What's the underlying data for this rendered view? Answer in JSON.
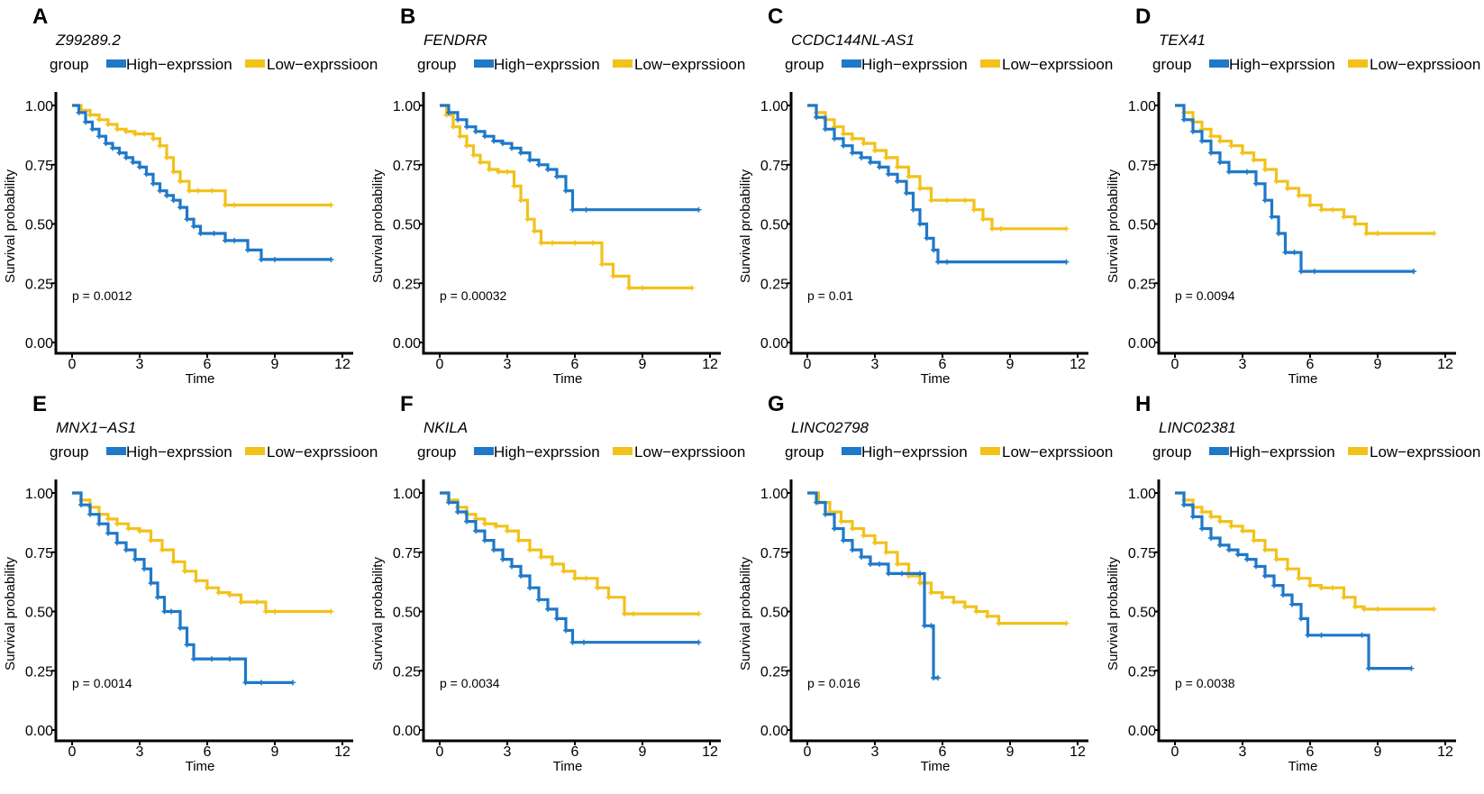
{
  "figure": {
    "legend_title": "group",
    "colors": {
      "high": "#1f78c8",
      "low": "#f2c21b"
    }
  },
  "chart_data": [
    {
      "type": "line",
      "panel": "A",
      "title": "Z99289.2",
      "xlabel": "Time",
      "ylabel": "Survival probability",
      "xlim": [
        0,
        12
      ],
      "ylim": [
        0,
        1
      ],
      "xticks": [
        "0",
        "3",
        "6",
        "9",
        "12"
      ],
      "yticks": [
        "0.00",
        "0.25",
        "0.50",
        "0.75",
        "1.00"
      ],
      "pvalue": "p = 0.0012",
      "legend_title": "group",
      "series": [
        {
          "name": "High−exprssion",
          "x": [
            0,
            0.3,
            0.6,
            0.9,
            1.2,
            1.5,
            1.8,
            2.1,
            2.4,
            2.7,
            3,
            3.3,
            3.6,
            3.9,
            4.2,
            4.5,
            4.8,
            5.1,
            5.4,
            5.7,
            6.3,
            6.8,
            7.2,
            7.8,
            8.4,
            9.0,
            11.5
          ],
          "y": [
            1,
            0.97,
            0.93,
            0.9,
            0.87,
            0.84,
            0.82,
            0.8,
            0.78,
            0.76,
            0.74,
            0.71,
            0.67,
            0.64,
            0.62,
            0.6,
            0.57,
            0.52,
            0.49,
            0.46,
            0.46,
            0.43,
            0.43,
            0.39,
            0.35,
            0.35,
            0.35
          ]
        },
        {
          "name": "Low−exprssioon",
          "x": [
            0,
            0.4,
            0.8,
            1.2,
            1.6,
            2.0,
            2.4,
            2.8,
            3.2,
            3.6,
            3.9,
            4.2,
            4.5,
            4.8,
            5.2,
            5.6,
            6.2,
            6.8,
            7.2,
            11.5
          ],
          "y": [
            1,
            0.98,
            0.96,
            0.94,
            0.92,
            0.9,
            0.89,
            0.88,
            0.88,
            0.86,
            0.83,
            0.78,
            0.72,
            0.68,
            0.64,
            0.64,
            0.64,
            0.58,
            0.58,
            0.58
          ]
        }
      ]
    },
    {
      "type": "line",
      "panel": "B",
      "title": "FENDRR",
      "xlabel": "Time",
      "ylabel": "Survival probability",
      "xlim": [
        0,
        12
      ],
      "ylim": [
        0,
        1
      ],
      "xticks": [
        "0",
        "3",
        "6",
        "9",
        "12"
      ],
      "yticks": [
        "0.00",
        "0.25",
        "0.50",
        "0.75",
        "1.00"
      ],
      "pvalue": "p = 0.00032",
      "legend_title": "group",
      "series": [
        {
          "name": "High−exprssion",
          "x": [
            0,
            0.4,
            0.8,
            1.2,
            1.6,
            2.0,
            2.4,
            2.8,
            3.2,
            3.6,
            4.0,
            4.4,
            4.8,
            5.2,
            5.6,
            5.9,
            6.5,
            11.5
          ],
          "y": [
            1,
            0.97,
            0.94,
            0.91,
            0.89,
            0.87,
            0.85,
            0.84,
            0.82,
            0.8,
            0.77,
            0.75,
            0.73,
            0.7,
            0.64,
            0.56,
            0.56,
            0.56
          ]
        },
        {
          "name": "Low−exprssioon",
          "x": [
            0,
            0.3,
            0.6,
            0.9,
            1.2,
            1.5,
            1.8,
            2.2,
            2.6,
            3.0,
            3.3,
            3.6,
            3.9,
            4.2,
            4.5,
            5.0,
            6.0,
            6.8,
            7.2,
            7.7,
            8.4,
            9.0,
            11.2
          ],
          "y": [
            1,
            0.96,
            0.91,
            0.87,
            0.83,
            0.79,
            0.76,
            0.73,
            0.72,
            0.72,
            0.66,
            0.6,
            0.52,
            0.47,
            0.42,
            0.42,
            0.42,
            0.42,
            0.33,
            0.28,
            0.23,
            0.23,
            0.23
          ]
        }
      ]
    },
    {
      "type": "line",
      "panel": "C",
      "title": "CCDC144NL-AS1",
      "xlabel": "Time",
      "ylabel": "Survival probability",
      "xlim": [
        0,
        12
      ],
      "ylim": [
        0,
        1
      ],
      "xticks": [
        "0",
        "3",
        "6",
        "9",
        "12"
      ],
      "yticks": [
        "0.00",
        "0.25",
        "0.50",
        "0.75",
        "1.00"
      ],
      "pvalue": "p = 0.01",
      "legend_title": "group",
      "series": [
        {
          "name": "High−exprssion",
          "x": [
            0,
            0.4,
            0.8,
            1.2,
            1.6,
            2.0,
            2.4,
            2.8,
            3.2,
            3.6,
            4.0,
            4.4,
            4.7,
            5.0,
            5.3,
            5.6,
            5.8,
            6.2,
            11.5
          ],
          "y": [
            1,
            0.95,
            0.9,
            0.86,
            0.83,
            0.8,
            0.78,
            0.76,
            0.74,
            0.71,
            0.68,
            0.63,
            0.56,
            0.5,
            0.44,
            0.39,
            0.34,
            0.34,
            0.34
          ]
        },
        {
          "name": "Low−exprssioon",
          "x": [
            0,
            0.4,
            0.8,
            1.2,
            1.6,
            2.0,
            2.5,
            3.0,
            3.5,
            4.0,
            4.5,
            5.0,
            5.5,
            6.2,
            7.0,
            7.4,
            7.8,
            8.2,
            8.6,
            11.5
          ],
          "y": [
            1,
            0.97,
            0.94,
            0.91,
            0.88,
            0.86,
            0.84,
            0.81,
            0.78,
            0.74,
            0.7,
            0.65,
            0.6,
            0.6,
            0.6,
            0.56,
            0.52,
            0.48,
            0.48,
            0.48
          ]
        }
      ]
    },
    {
      "type": "line",
      "panel": "D",
      "title": "TEX41",
      "xlabel": "Time",
      "ylabel": "Survival probability",
      "xlim": [
        0,
        12
      ],
      "ylim": [
        0,
        1
      ],
      "xticks": [
        "0",
        "3",
        "6",
        "9",
        "12"
      ],
      "yticks": [
        "0.00",
        "0.25",
        "0.50",
        "0.75",
        "1.00"
      ],
      "pvalue": "p = 0.0094",
      "legend_title": "group",
      "series": [
        {
          "name": "High−exprssion",
          "x": [
            0,
            0.4,
            0.8,
            1.2,
            1.6,
            2.0,
            2.4,
            3.2,
            3.6,
            4.0,
            4.3,
            4.6,
            4.9,
            5.3,
            5.6,
            6.2,
            10.6
          ],
          "y": [
            1,
            0.94,
            0.89,
            0.85,
            0.8,
            0.76,
            0.72,
            0.72,
            0.67,
            0.6,
            0.53,
            0.46,
            0.38,
            0.38,
            0.3,
            0.3,
            0.3
          ]
        },
        {
          "name": "Low−exprssioon",
          "x": [
            0,
            0.4,
            0.8,
            1.2,
            1.6,
            2.0,
            2.5,
            3.0,
            3.5,
            4.0,
            4.5,
            5.0,
            5.5,
            6.0,
            6.5,
            7.0,
            7.5,
            8.0,
            8.5,
            9.0,
            11.5
          ],
          "y": [
            1,
            0.97,
            0.93,
            0.9,
            0.87,
            0.85,
            0.83,
            0.8,
            0.77,
            0.73,
            0.68,
            0.65,
            0.62,
            0.58,
            0.56,
            0.56,
            0.53,
            0.5,
            0.46,
            0.46,
            0.46
          ]
        }
      ]
    },
    {
      "type": "line",
      "panel": "E",
      "title": "MNX1−AS1",
      "xlabel": "Time",
      "ylabel": "Survival probability",
      "xlim": [
        0,
        12
      ],
      "ylim": [
        0,
        1
      ],
      "xticks": [
        "0",
        "3",
        "6",
        "9",
        "12"
      ],
      "yticks": [
        "0.00",
        "0.25",
        "0.50",
        "0.75",
        "1.00"
      ],
      "pvalue": "p = 0.0014",
      "legend_title": "group",
      "series": [
        {
          "name": "High−exprssion",
          "x": [
            0,
            0.4,
            0.8,
            1.2,
            1.6,
            2.0,
            2.4,
            2.8,
            3.2,
            3.5,
            3.8,
            4.1,
            4.4,
            4.8,
            5.1,
            5.4,
            6.2,
            7.0,
            7.7,
            8.4,
            9.8
          ],
          "y": [
            1,
            0.95,
            0.91,
            0.87,
            0.83,
            0.79,
            0.76,
            0.72,
            0.68,
            0.62,
            0.56,
            0.5,
            0.5,
            0.43,
            0.36,
            0.3,
            0.3,
            0.3,
            0.2,
            0.2,
            0.2
          ]
        },
        {
          "name": "Low−exprssioon",
          "x": [
            0,
            0.4,
            0.8,
            1.2,
            1.6,
            2.0,
            2.5,
            3.0,
            3.5,
            4.0,
            4.5,
            5.0,
            5.5,
            6.0,
            6.5,
            7.0,
            7.5,
            8.2,
            8.6,
            9.0,
            11.5
          ],
          "y": [
            1,
            0.97,
            0.94,
            0.91,
            0.89,
            0.87,
            0.85,
            0.84,
            0.8,
            0.76,
            0.71,
            0.67,
            0.63,
            0.6,
            0.58,
            0.57,
            0.54,
            0.54,
            0.5,
            0.5,
            0.5
          ]
        }
      ]
    },
    {
      "type": "line",
      "panel": "F",
      "title": "NKILA",
      "xlabel": "Time",
      "ylabel": "Survival probability",
      "xlim": [
        0,
        12
      ],
      "ylim": [
        0,
        1
      ],
      "xticks": [
        "0",
        "3",
        "6",
        "9",
        "12"
      ],
      "yticks": [
        "0.00",
        "0.25",
        "0.50",
        "0.75",
        "1.00"
      ],
      "pvalue": "p = 0.0034",
      "legend_title": "group",
      "series": [
        {
          "name": "High−exprssion",
          "x": [
            0,
            0.4,
            0.8,
            1.2,
            1.6,
            2.0,
            2.4,
            2.8,
            3.2,
            3.6,
            4.0,
            4.4,
            4.8,
            5.2,
            5.6,
            5.9,
            6.4,
            11.5
          ],
          "y": [
            1,
            0.96,
            0.92,
            0.88,
            0.84,
            0.8,
            0.76,
            0.72,
            0.69,
            0.65,
            0.6,
            0.55,
            0.51,
            0.47,
            0.42,
            0.37,
            0.37,
            0.37
          ]
        },
        {
          "name": "Low−exprssioon",
          "x": [
            0,
            0.4,
            0.8,
            1.2,
            1.6,
            2.0,
            2.5,
            3.0,
            3.5,
            4.0,
            4.5,
            5.0,
            5.5,
            6.0,
            6.5,
            7.0,
            7.5,
            8.2,
            8.6,
            11.5
          ],
          "y": [
            1,
            0.97,
            0.94,
            0.91,
            0.89,
            0.87,
            0.86,
            0.84,
            0.8,
            0.76,
            0.73,
            0.7,
            0.67,
            0.64,
            0.64,
            0.6,
            0.56,
            0.49,
            0.49,
            0.49
          ]
        }
      ]
    },
    {
      "type": "line",
      "panel": "G",
      "title": "LINC02798",
      "xlabel": "Time",
      "ylabel": "Survival probability",
      "xlim": [
        0,
        12
      ],
      "ylim": [
        0,
        1
      ],
      "xticks": [
        "0",
        "3",
        "6",
        "9",
        "12"
      ],
      "yticks": [
        "0.00",
        "0.25",
        "0.50",
        "0.75",
        "1.00"
      ],
      "pvalue": "p = 0.016",
      "legend_title": "group",
      "series": [
        {
          "name": "High−exprssion",
          "x": [
            0,
            0.4,
            0.8,
            1.2,
            1.6,
            2.0,
            2.4,
            2.8,
            3.2,
            3.6,
            4.2,
            5.0,
            5.2,
            5.5,
            5.6,
            5.8
          ],
          "y": [
            1,
            0.96,
            0.91,
            0.85,
            0.8,
            0.76,
            0.73,
            0.7,
            0.7,
            0.66,
            0.66,
            0.66,
            0.44,
            0.44,
            0.22,
            0.22
          ]
        },
        {
          "name": "Low−exprssioon",
          "x": [
            0,
            0.5,
            1.0,
            1.5,
            2.0,
            2.5,
            3.0,
            3.5,
            4.0,
            4.5,
            5.0,
            5.5,
            6.0,
            6.5,
            7.0,
            7.5,
            8.0,
            8.5,
            11.5
          ],
          "y": [
            1,
            0.96,
            0.92,
            0.88,
            0.85,
            0.82,
            0.79,
            0.75,
            0.7,
            0.65,
            0.62,
            0.58,
            0.56,
            0.54,
            0.52,
            0.5,
            0.48,
            0.45,
            0.45
          ]
        }
      ]
    },
    {
      "type": "line",
      "panel": "H",
      "title": "LINC02381",
      "xlabel": "Time",
      "ylabel": "Survival probability",
      "xlim": [
        0,
        12
      ],
      "ylim": [
        0,
        1
      ],
      "xticks": [
        "0",
        "3",
        "6",
        "9",
        "12"
      ],
      "yticks": [
        "0.00",
        "0.25",
        "0.50",
        "0.75",
        "1.00"
      ],
      "pvalue": "p = 0.0038",
      "legend_title": "group",
      "series": [
        {
          "name": "High−exprssion",
          "x": [
            0,
            0.4,
            0.8,
            1.2,
            1.6,
            2.0,
            2.4,
            2.8,
            3.2,
            3.6,
            4.0,
            4.4,
            4.8,
            5.2,
            5.6,
            5.9,
            6.5,
            8.3,
            8.6,
            10.5
          ],
          "y": [
            1,
            0.95,
            0.9,
            0.85,
            0.81,
            0.78,
            0.76,
            0.74,
            0.72,
            0.69,
            0.65,
            0.61,
            0.57,
            0.53,
            0.47,
            0.4,
            0.4,
            0.4,
            0.26,
            0.26
          ]
        },
        {
          "name": "Low−exprssioon",
          "x": [
            0,
            0.4,
            0.8,
            1.2,
            1.6,
            2.0,
            2.5,
            3.0,
            3.5,
            4.0,
            4.5,
            5.0,
            5.5,
            6.0,
            6.5,
            7.0,
            7.5,
            8.0,
            8.4,
            9.0,
            11.5
          ],
          "y": [
            1,
            0.97,
            0.94,
            0.92,
            0.9,
            0.88,
            0.86,
            0.84,
            0.8,
            0.76,
            0.72,
            0.68,
            0.64,
            0.61,
            0.6,
            0.6,
            0.56,
            0.52,
            0.51,
            0.51,
            0.51
          ]
        }
      ]
    }
  ]
}
